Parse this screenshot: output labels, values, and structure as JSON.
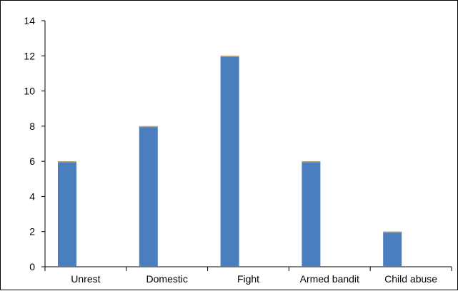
{
  "chart_data": {
    "type": "bar",
    "categories": [
      "Unrest",
      "Domestic",
      "Fight",
      "Armed bandit",
      "Child abuse"
    ],
    "values": [
      6,
      8,
      12,
      6,
      2
    ],
    "title": "",
    "xlabel": "",
    "ylabel": "",
    "ylim": [
      0,
      14
    ],
    "yticks": [
      "0",
      "2",
      "4",
      "6",
      "8",
      "10",
      "12",
      "14"
    ],
    "grid": false,
    "legend": "none",
    "bar_color": "#4a7ebf",
    "bar_top_accent": "#c8a060"
  }
}
